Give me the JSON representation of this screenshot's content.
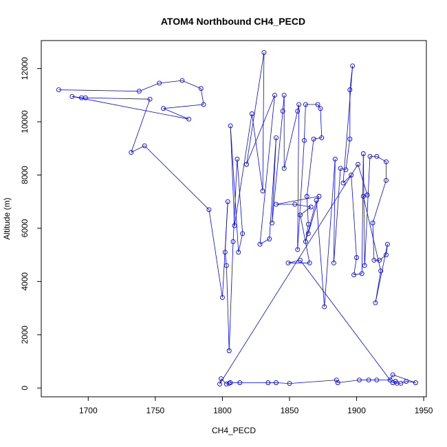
{
  "chart_data": {
    "type": "line",
    "title": "ATOM4 Northbound CH4_PECD",
    "xlabel": "CH4_PECD",
    "ylabel": "Altitude (m)",
    "xlim": [
      1665,
      1952
    ],
    "ylim": [
      -330,
      13050
    ],
    "xticks": [
      1700,
      1750,
      1800,
      1850,
      1900,
      1950
    ],
    "yticks": [
      0,
      2000,
      4000,
      6000,
      8000,
      10000,
      12000
    ],
    "grid": false,
    "marker": "open-circle",
    "series": [
      {
        "color": "#0000ff",
        "points": [
          [
            1678,
            11200
          ],
          [
            1738,
            11150
          ],
          [
            1753,
            11450
          ],
          [
            1770,
            11550
          ],
          [
            1784,
            11250
          ],
          [
            1786,
            10650
          ],
          [
            1756,
            10500
          ],
          [
            1775,
            10100
          ],
          [
            1688,
            10950
          ],
          [
            1695,
            10900
          ],
          [
            1698,
            10900
          ],
          [
            1746,
            10850
          ],
          [
            1732,
            8850
          ],
          [
            1742,
            9100
          ],
          [
            1790,
            6700
          ],
          [
            1800,
            3400
          ],
          [
            1804,
            7000
          ],
          [
            1802,
            5100
          ],
          [
            1803,
            4600
          ],
          [
            1805,
            1400
          ],
          [
            1808,
            5500
          ],
          [
            1811,
            8600
          ],
          [
            1815,
            5800
          ],
          [
            1812,
            5100
          ],
          [
            1806,
            9850
          ],
          [
            1809,
            6100
          ],
          [
            1822,
            10300
          ],
          [
            1830,
            7400
          ],
          [
            1831,
            12600
          ],
          [
            1818,
            8400
          ],
          [
            1839,
            11000
          ],
          [
            1828,
            5400
          ],
          [
            1835,
            5600
          ],
          [
            1840,
            9400
          ],
          [
            1837,
            6200
          ],
          [
            1845,
            10400
          ],
          [
            1846,
            11000
          ],
          [
            1846,
            8250
          ],
          [
            1856,
            10400
          ],
          [
            1857,
            10650
          ],
          [
            1856,
            5200
          ],
          [
            1861,
            9300
          ],
          [
            1862,
            10650
          ],
          [
            1871,
            10650
          ],
          [
            1873,
            10500
          ],
          [
            1874,
            9400
          ],
          [
            1868,
            9350
          ],
          [
            1863,
            7200
          ],
          [
            1864,
            6150
          ],
          [
            1862,
            5500
          ],
          [
            1870,
            7050
          ],
          [
            1876,
            3050
          ],
          [
            1884,
            8600
          ],
          [
            1883,
            4700
          ],
          [
            1888,
            8250
          ],
          [
            1892,
            8200
          ],
          [
            1895,
            9350
          ],
          [
            1895,
            11200
          ],
          [
            1897,
            12100
          ],
          [
            1890,
            7700
          ],
          [
            1896,
            8000
          ],
          [
            1900,
            4900
          ],
          [
            1898,
            4250
          ],
          [
            1904,
            4300
          ],
          [
            1905,
            8800
          ],
          [
            1906,
            4600
          ],
          [
            1910,
            8700
          ],
          [
            1915,
            8700
          ],
          [
            1922,
            8500
          ],
          [
            1922,
            7800
          ],
          [
            1912,
            6200
          ],
          [
            1913,
            4800
          ],
          [
            1917,
            4800
          ],
          [
            1922,
            5000
          ],
          [
            1923,
            5400
          ],
          [
            1914,
            3200
          ],
          [
            1918,
            4400
          ],
          [
            1905,
            7200
          ],
          [
            1908,
            7250
          ],
          [
            1901,
            8400
          ],
          [
            1798,
            150
          ],
          [
            1799,
            350
          ],
          [
            1803,
            150
          ],
          [
            1805,
            180
          ],
          [
            1806,
            200
          ],
          [
            1813,
            200
          ],
          [
            1834,
            200
          ],
          [
            1840,
            200
          ],
          [
            1850,
            170
          ],
          [
            1885,
            300
          ],
          [
            1886,
            200
          ],
          [
            1902,
            300
          ],
          [
            1909,
            300
          ],
          [
            1915,
            300
          ],
          [
            1925,
            300
          ],
          [
            1927,
            200
          ],
          [
            1929,
            250
          ],
          [
            1930,
            180
          ],
          [
            1933,
            180
          ],
          [
            1937,
            250
          ],
          [
            1944,
            200
          ],
          [
            1927,
            500
          ],
          [
            1925,
            300
          ],
          [
            1858,
            4800
          ],
          [
            1849,
            4700
          ],
          [
            1865,
            4700
          ],
          [
            1858,
            6500
          ],
          [
            1866,
            6800
          ],
          [
            1854,
            6900
          ],
          [
            1840,
            6900
          ],
          [
            1872,
            7200
          ],
          [
            1864,
            5800
          ]
        ]
      }
    ]
  }
}
